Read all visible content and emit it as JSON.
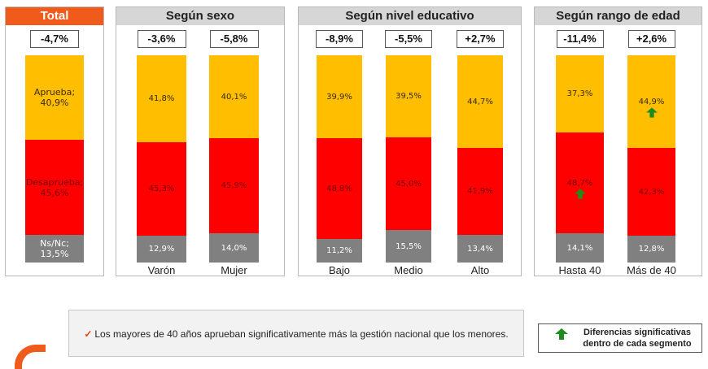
{
  "colors": {
    "aprueba": "#ffbf00",
    "desaprueba": "#ff0000",
    "nsnc": "#808080",
    "accent": "#f05a1a",
    "arrow": "#1e8c1e"
  },
  "panels": {
    "total": {
      "title": "Total"
    },
    "sexo": {
      "title": "Según sexo"
    },
    "nivel": {
      "title": "Según nivel educativo"
    },
    "edad": {
      "title": "Según rango de edad"
    }
  },
  "chart_data": {
    "type": "bar",
    "stacked": true,
    "unit": "%",
    "series_names": [
      "Aprueba",
      "Desaprueba",
      "Ns/Nc"
    ],
    "groups": [
      {
        "id": "total",
        "title": "Total",
        "categories": [
          {
            "label": "",
            "diff": "-4,7%",
            "aprueba": 40.9,
            "desaprueba": 45.6,
            "nsnc": 13.5,
            "labels": {
              "aprueba": "Aprueba;\n40,9%",
              "desaprueba": "Desaprueba;\n45,6%",
              "nsnc": "Ns/Nc;\n13,5%"
            }
          }
        ]
      },
      {
        "id": "sexo",
        "title": "Según sexo",
        "categories": [
          {
            "label": "Varón",
            "diff": "-3,6%",
            "aprueba": 41.8,
            "desaprueba": 45.3,
            "nsnc": 12.9,
            "labels": {
              "aprueba": "41,8%",
              "desaprueba": "45,3%",
              "nsnc": "12,9%"
            }
          },
          {
            "label": "Mujer",
            "diff": "-5,8%",
            "aprueba": 40.1,
            "desaprueba": 45.9,
            "nsnc": 14.0,
            "labels": {
              "aprueba": "40,1%",
              "desaprueba": "45,9%",
              "nsnc": "14,0%"
            }
          }
        ]
      },
      {
        "id": "nivel",
        "title": "Según nivel educativo",
        "categories": [
          {
            "label": "Bajo",
            "diff": "-8,9%",
            "aprueba": 39.9,
            "desaprueba": 48.8,
            "nsnc": 11.2,
            "labels": {
              "aprueba": "39,9%",
              "desaprueba": "48,8%",
              "nsnc": "11,2%"
            }
          },
          {
            "label": "Medio",
            "diff": "-5,5%",
            "aprueba": 39.5,
            "desaprueba": 45.0,
            "nsnc": 15.5,
            "labels": {
              "aprueba": "39,5%",
              "desaprueba": "45,0%",
              "nsnc": "15,5%"
            }
          },
          {
            "label": "Alto",
            "diff": "+2,7%",
            "aprueba": 44.7,
            "desaprueba": 41.9,
            "nsnc": 13.4,
            "labels": {
              "aprueba": "44,7%",
              "desaprueba": "41,9%",
              "nsnc": "13,4%"
            }
          }
        ]
      },
      {
        "id": "edad",
        "title": "Según rango de edad",
        "categories": [
          {
            "label": "Hasta 40",
            "diff": "-11,4%",
            "aprueba": 37.3,
            "desaprueba": 48.7,
            "nsnc": 14.1,
            "labels": {
              "aprueba": "37,3%",
              "desaprueba": "48,7%",
              "nsnc": "14,1%"
            },
            "significant": "desaprueba"
          },
          {
            "label": "Más de 40",
            "diff": "+2,6%",
            "aprueba": 44.9,
            "desaprueba": 42.3,
            "nsnc": 12.8,
            "labels": {
              "aprueba": "44,9%",
              "desaprueba": "42,3%",
              "nsnc": "12,8%"
            },
            "significant": "aprueba"
          }
        ]
      }
    ]
  },
  "note": {
    "check": "✓",
    "text": "Los mayores de 40 años aprueban significativamente más la gestión nacional que los menores."
  },
  "legend": {
    "icon": "green-up-arrow-icon",
    "text": "Diferencias significativas dentro de cada segmento"
  }
}
